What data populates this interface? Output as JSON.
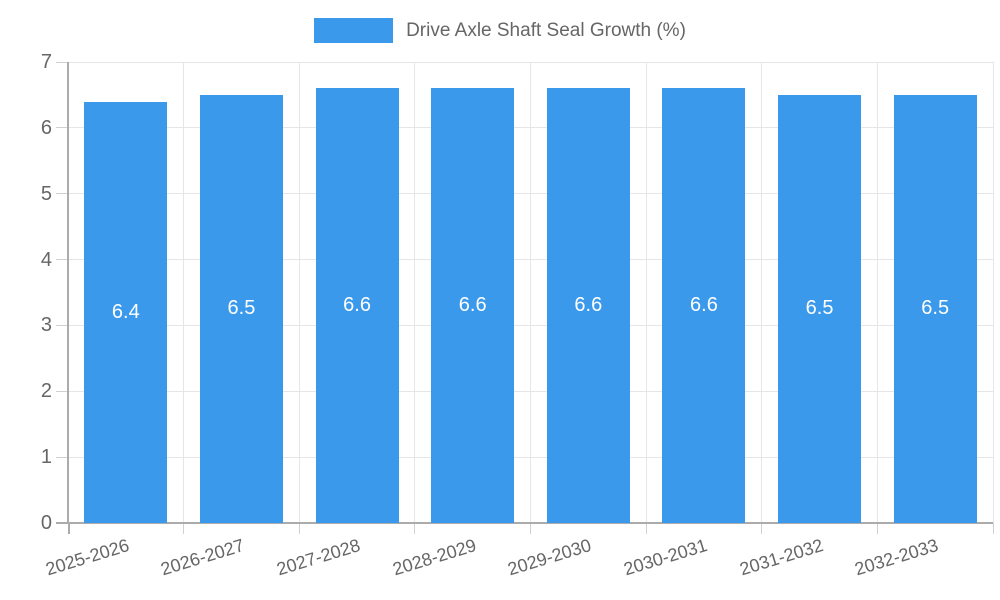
{
  "chart_data": {
    "type": "bar",
    "title": "Drive Axle Shaft Seal Growth (%)",
    "legend": "Drive Axle Shaft Seal Growth (%)",
    "legend_position": "top-center",
    "categories": [
      "2025-2026",
      "2026-2027",
      "2027-2028",
      "2028-2029",
      "2029-2030",
      "2030-2031",
      "2031-2032",
      "2032-2033"
    ],
    "values": [
      6.4,
      6.5,
      6.6,
      6.6,
      6.6,
      6.6,
      6.5,
      6.5
    ],
    "bar_labels": [
      "6.4",
      "6.5",
      "6.6",
      "6.6",
      "6.6",
      "6.6",
      "6.5",
      "6.5"
    ],
    "xlabel": "",
    "ylabel": "",
    "ylim": [
      0,
      7
    ],
    "yticks": [
      0,
      1,
      2,
      3,
      4,
      5,
      6,
      7
    ],
    "grid": "on"
  },
  "colors": {
    "bar": "#3B99EC",
    "grid": "#E6E6E6",
    "axis": "#ABABAB",
    "tick": "#D0D0D0",
    "text": "#666666",
    "bar_label_text": "#FFFFFF",
    "background": "#FFFFFF"
  }
}
